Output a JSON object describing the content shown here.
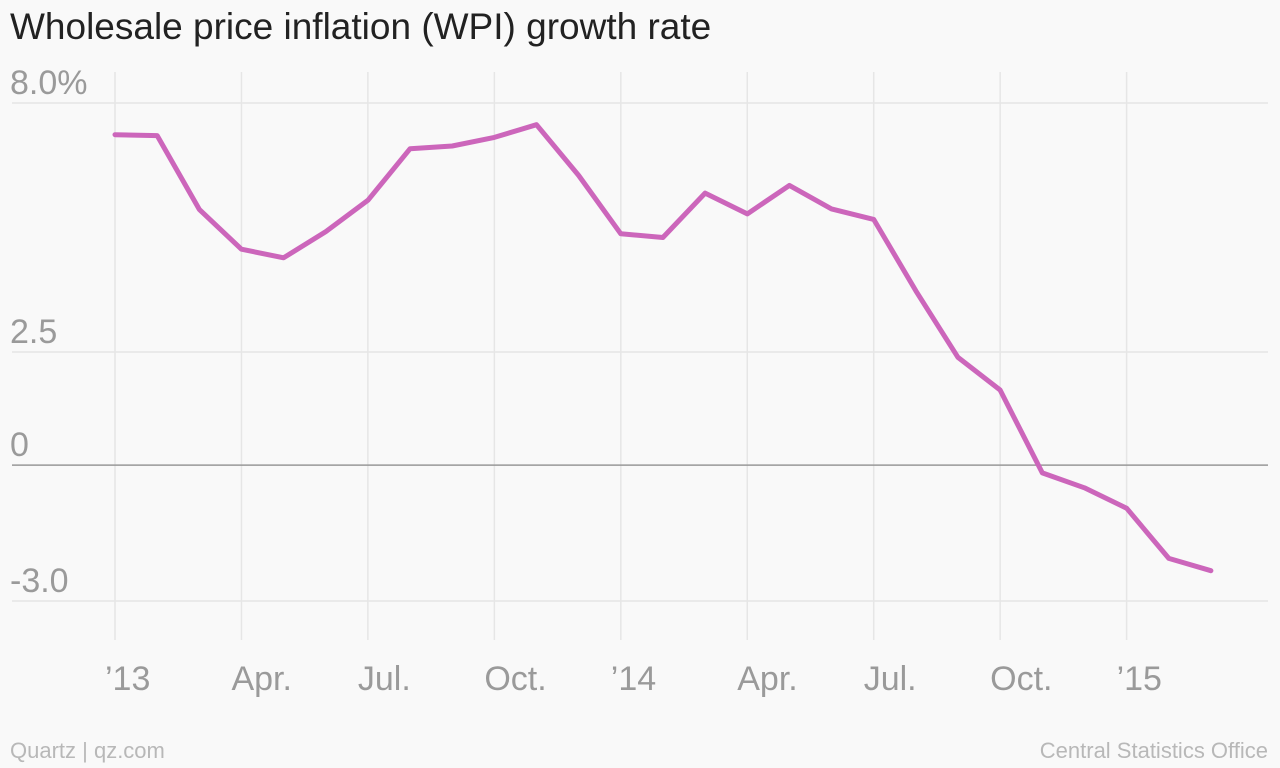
{
  "title": "Wholesale price inflation (WPI) growth rate",
  "footer": {
    "source_left": "Quartz | qz.com",
    "source_right": "Central Statistics Office"
  },
  "colors": {
    "line": "#cc66bb",
    "grid": "#e6e6e6",
    "zero_line": "#999999",
    "tick_label": "#9a9a9a"
  },
  "chart_data": {
    "type": "line",
    "title": "Wholesale price inflation (WPI) growth rate",
    "xlabel": "",
    "ylabel": "",
    "ylim": [
      -3.0,
      8.0
    ],
    "y_ticks": [
      {
        "value": 8.0,
        "label": "8.0%"
      },
      {
        "value": 2.5,
        "label": "2.5"
      },
      {
        "value": 0,
        "label": "0"
      },
      {
        "value": -3.0,
        "label": "-3.0"
      }
    ],
    "x_ticks": [
      {
        "month_index": 0,
        "label": "’13"
      },
      {
        "month_index": 3,
        "label": "Apr."
      },
      {
        "month_index": 6,
        "label": "Jul."
      },
      {
        "month_index": 9,
        "label": "Oct."
      },
      {
        "month_index": 12,
        "label": "’14"
      },
      {
        "month_index": 15,
        "label": "Apr."
      },
      {
        "month_index": 18,
        "label": "Jul."
      },
      {
        "month_index": 21,
        "label": "Oct."
      },
      {
        "month_index": 24,
        "label": "’15"
      }
    ],
    "grid": true,
    "x": [
      "Jan 2013",
      "Feb 2013",
      "Mar 2013",
      "Apr 2013",
      "May 2013",
      "Jun 2013",
      "Jul 2013",
      "Aug 2013",
      "Sep 2013",
      "Oct 2013",
      "Nov 2013",
      "Dec 2013",
      "Jan 2014",
      "Feb 2014",
      "Mar 2014",
      "Apr 2014",
      "May 2014",
      "Jun 2014",
      "Jul 2014",
      "Aug 2014",
      "Sep 2014",
      "Oct 2014",
      "Nov 2014",
      "Dec 2014",
      "Jan 2015",
      "Feb 2015",
      "Mar 2015"
    ],
    "series": [
      {
        "values": [
          7.3,
          7.28,
          5.65,
          4.77,
          4.58,
          5.16,
          5.85,
          6.99,
          7.05,
          7.24,
          7.52,
          6.4,
          5.11,
          5.03,
          6.01,
          5.55,
          6.18,
          5.66,
          5.43,
          3.85,
          2.38,
          1.66,
          -0.17,
          -0.5,
          -0.95,
          -2.06,
          -2.33
        ]
      }
    ]
  }
}
